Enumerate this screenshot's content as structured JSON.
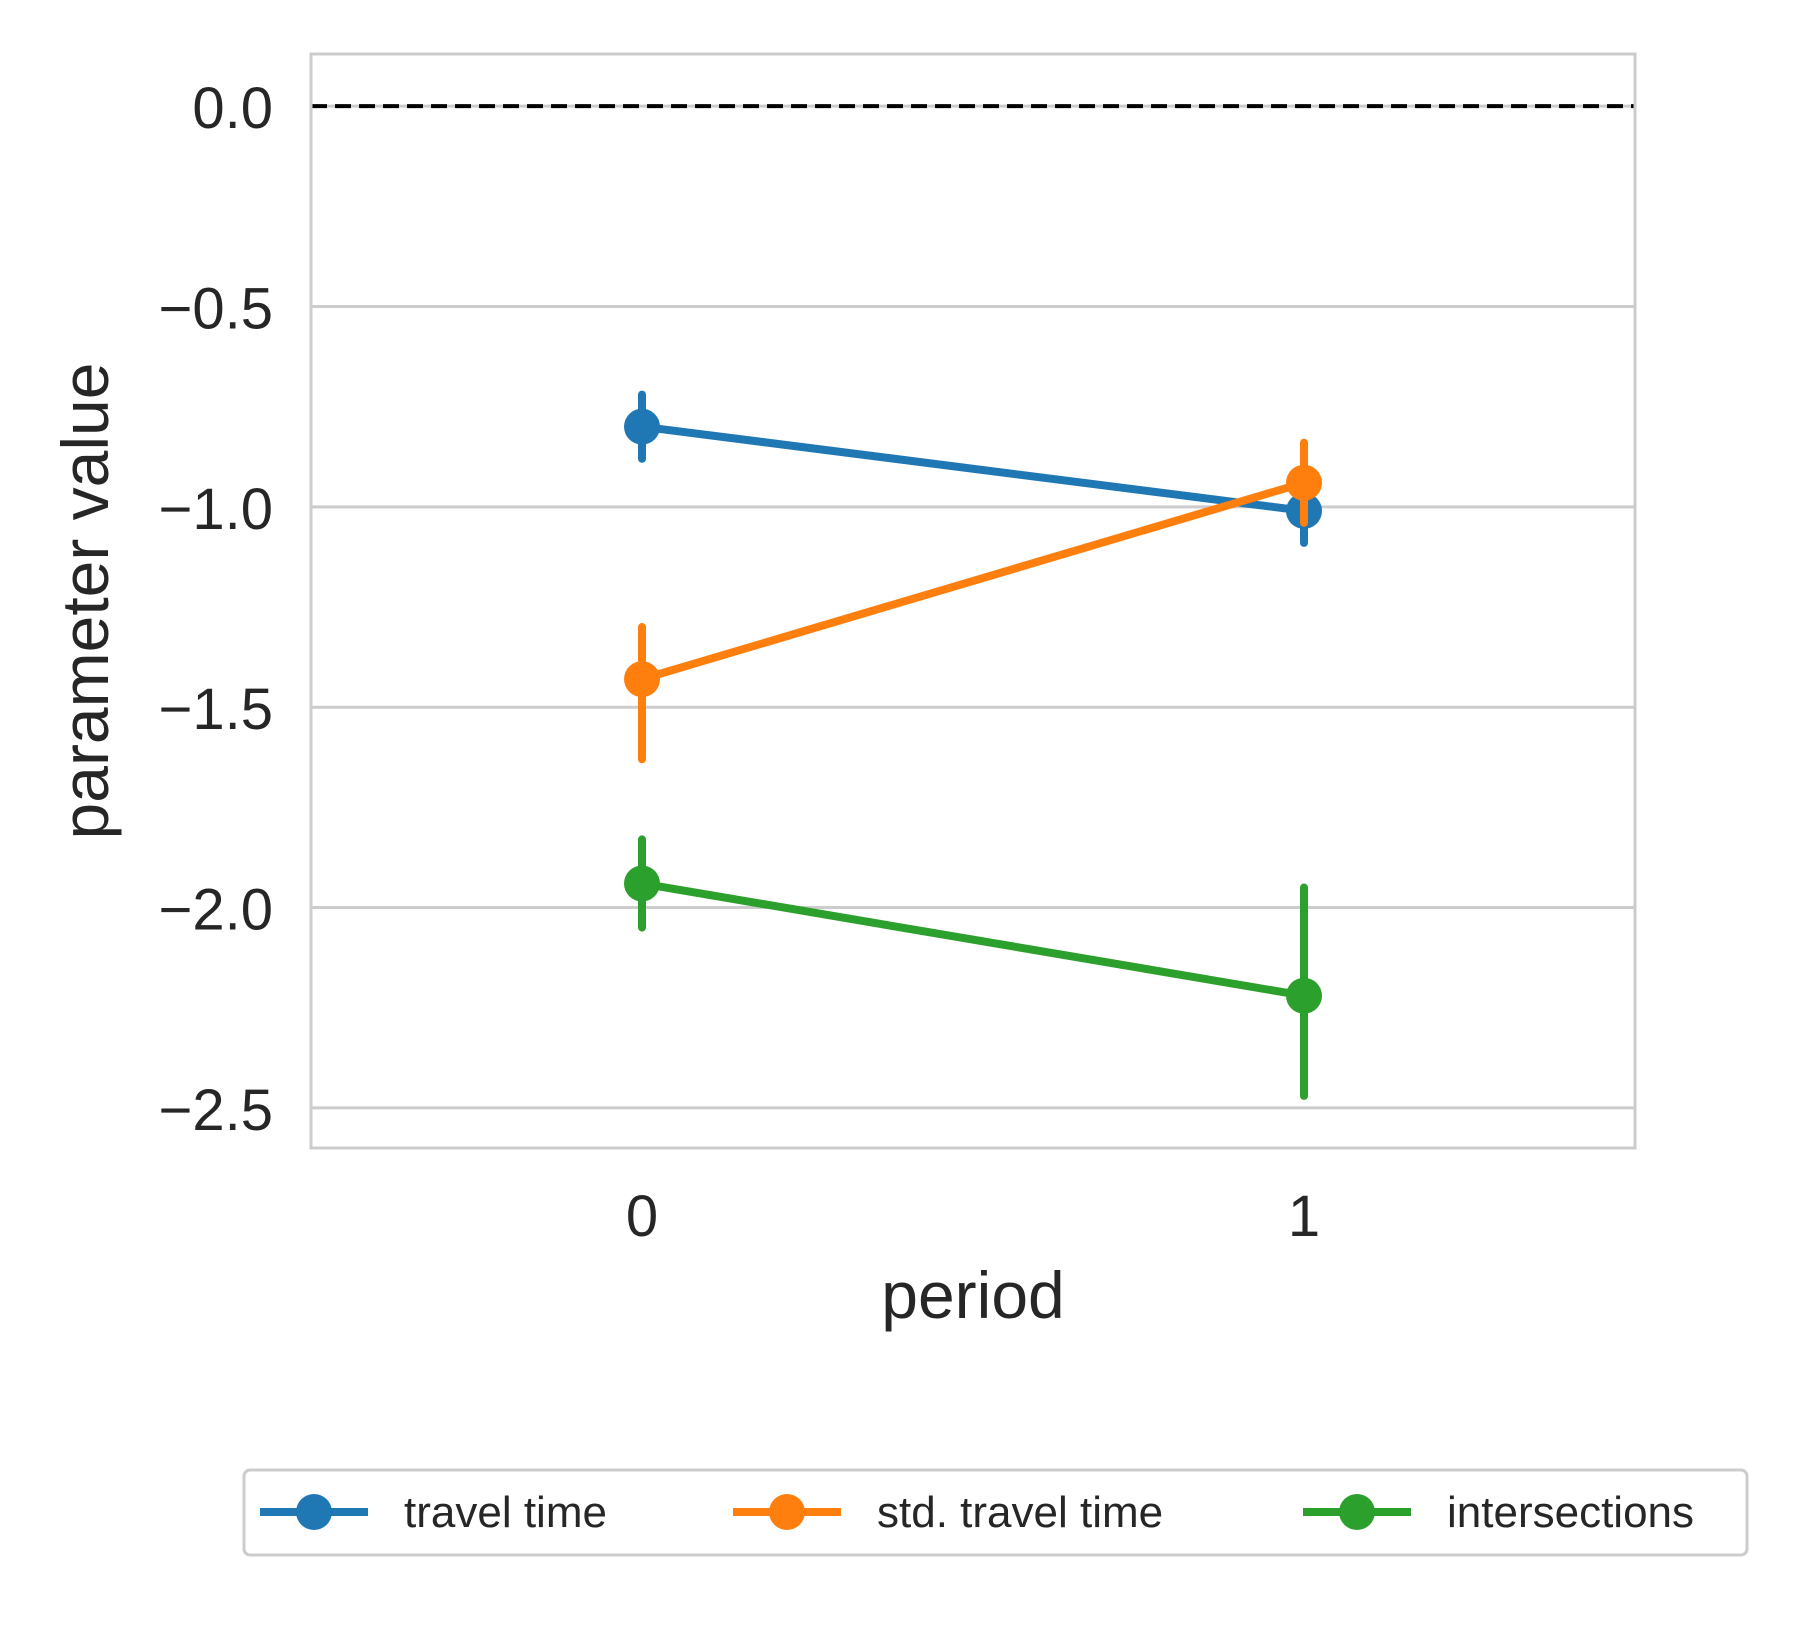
{
  "chart_data": {
    "type": "line",
    "title": "",
    "xlabel": "period",
    "ylabel": "parameter value",
    "categories": [
      "0",
      "1"
    ],
    "ylim": [
      -2.6,
      0.13
    ],
    "yticks": [
      0.0,
      -0.5,
      -1.0,
      -1.5,
      -2.0,
      -2.5
    ],
    "ytick_labels": [
      "0.0",
      "−0.5",
      "−1.0",
      "−1.5",
      "−2.0",
      "−2.5"
    ],
    "reference_line": {
      "y": 0.0,
      "style": "dashed",
      "color": "#000000"
    },
    "grid": "horizontal",
    "legend_position": "bottom-center",
    "series": [
      {
        "name": "travel time",
        "color": "#1f77b4",
        "values": [
          -0.8,
          -1.01
        ],
        "ci_low": [
          -0.88,
          -1.09
        ],
        "ci_high": [
          -0.72,
          -0.93
        ]
      },
      {
        "name": "std. travel time",
        "color": "#ff7f0e",
        "values": [
          -1.43,
          -0.94
        ],
        "ci_low": [
          -1.63,
          -1.04
        ],
        "ci_high": [
          -1.3,
          -0.84
        ]
      },
      {
        "name": "intersections",
        "color": "#2ca02c",
        "values": [
          -1.94,
          -2.22
        ],
        "ci_low": [
          -2.05,
          -2.47
        ],
        "ci_high": [
          -1.83,
          -1.95
        ]
      }
    ]
  }
}
